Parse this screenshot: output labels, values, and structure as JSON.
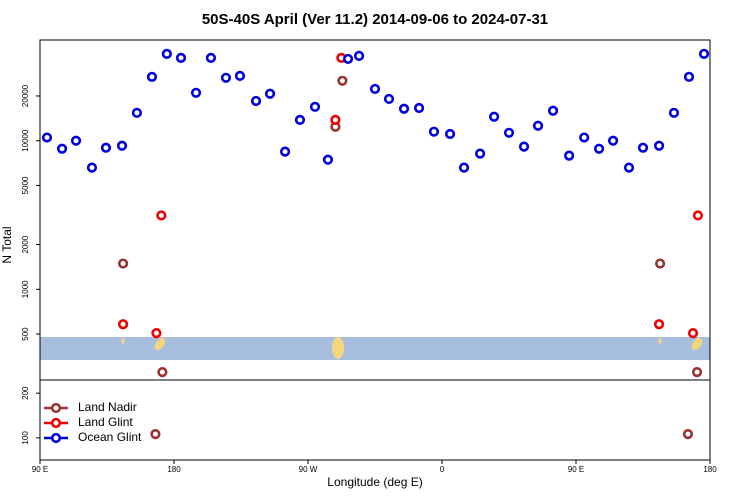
{
  "chart_data": {
    "type": "scatter",
    "title": "50S-40S April (Ver 11.2)   2014-09-06 to 2024-07-31",
    "x_label": "Longitude (deg E)",
    "y_label": "N Total",
    "log_y": true,
    "legend": "lower left",
    "xlim": [
      90,
      540
    ],
    "ylim": [
      71,
      47600
    ],
    "xticks": [
      {
        "value": 90,
        "label": "90 E"
      },
      {
        "value": 180,
        "label": "180"
      },
      {
        "value": 270,
        "label": "90 W"
      },
      {
        "value": 360,
        "label": "0"
      },
      {
        "value": 450,
        "label": "90 E"
      },
      {
        "value": 540,
        "label": "180"
      }
    ],
    "yticks": [
      100,
      200,
      500,
      1000,
      2000,
      5000,
      10000,
      20000
    ],
    "series": [
      {
        "name": "Land Nadir",
        "color": "#993333",
        "x": [
          145.8,
          167.5,
          172.2,
          288.4,
          293.1,
          506.5,
          525.2,
          531.3
        ],
        "values": [
          1490,
          106,
          277,
          12400,
          25300,
          1490,
          106,
          277
        ]
      },
      {
        "name": "Land Glint",
        "color": "#ee0000",
        "x": [
          145.8,
          168.2,
          171.5,
          288.4,
          292.4,
          505.8,
          528.6,
          531.9
        ],
        "values": [
          582,
          507,
          3140,
          13800,
          36100,
          582,
          507,
          3140
        ]
      },
      {
        "name": "Ocean Glint",
        "color": "#0000dd",
        "x": [
          94.7,
          104.8,
          114.2,
          124.9,
          134.3,
          145.1,
          155.1,
          165.2,
          175.2,
          184.7,
          194.8,
          204.8,
          214.9,
          224.3,
          235.1,
          244.5,
          254.6,
          264.6,
          274.7,
          283.4,
          296.9,
          304.3,
          315.0,
          324.4,
          334.5,
          344.6,
          354.6,
          365.4,
          374.8,
          385.6,
          395.0,
          405.0,
          415.1,
          424.5,
          434.6,
          445.4,
          455.5,
          465.5,
          474.9,
          485.6,
          495.0,
          505.8,
          515.8,
          525.9,
          536.0
        ],
        "values": [
          10500,
          8830,
          10000,
          6590,
          8970,
          9250,
          15400,
          26900,
          38400,
          36100,
          21000,
          36100,
          26500,
          27300,
          18500,
          20700,
          8440,
          13800,
          16900,
          7450,
          35500,
          37200,
          22300,
          19100,
          16400,
          16600,
          11500,
          11100,
          6590,
          8180,
          14500,
          11300,
          9120,
          12600,
          15900,
          7930,
          10500,
          8830,
          10000,
          6590,
          8970,
          9250,
          15400,
          26900,
          38400
        ]
      }
    ]
  }
}
